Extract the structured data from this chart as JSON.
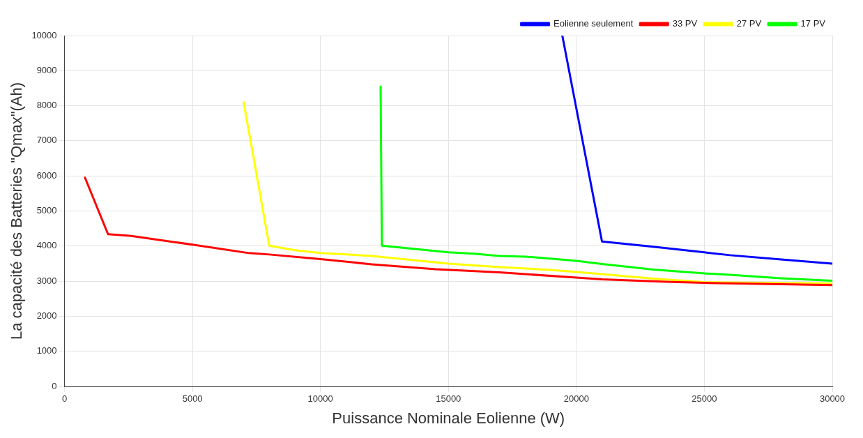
{
  "chart_data": {
    "type": "line",
    "xlabel": "Puissance Nominale Eolienne (W)",
    "ylabel": "La capacité des Batteries \"Qmax\"(Ah)",
    "xlim": [
      0,
      30000
    ],
    "xticks": [
      0,
      5000,
      10000,
      15000,
      20000,
      25000,
      30000
    ],
    "ylim": [
      0,
      10000
    ],
    "yticks": [
      0,
      1000,
      2000,
      3000,
      4000,
      5000,
      6000,
      7000,
      8000,
      9000,
      10000
    ],
    "grid": true,
    "legend": "top right",
    "line_style": "solid",
    "marker": "none",
    "series": [
      {
        "name": "Eolienne seulement",
        "color": "#0000ff",
        "x": [
          19450,
          21000,
          23000,
          25000,
          26000,
          28000,
          30000
        ],
        "values": [
          10000,
          4130,
          3980,
          3820,
          3740,
          3620,
          3500
        ]
      },
      {
        "name": "33 PV",
        "color": "#ff0000",
        "x": [
          800,
          1700,
          2600,
          5000,
          7200,
          8000,
          10000,
          12000,
          14500,
          17000,
          20000,
          21000,
          23500,
          25000,
          30000
        ],
        "values": [
          5950,
          4340,
          4290,
          4040,
          3800,
          3760,
          3630,
          3480,
          3340,
          3250,
          3100,
          3050,
          2980,
          2950,
          2890
        ]
      },
      {
        "name": "27 PV",
        "color": "#ffff00",
        "x": [
          7000,
          8000,
          9000,
          10000,
          12000,
          15000,
          17000,
          19000,
          21000,
          23000,
          25000,
          30000
        ],
        "values": [
          8100,
          4010,
          3880,
          3800,
          3720,
          3500,
          3400,
          3320,
          3200,
          3070,
          2970,
          2930
        ]
      },
      {
        "name": "17 PV",
        "color": "#00ff00",
        "x": [
          12350,
          12400,
          15000,
          16000,
          17000,
          18000,
          20000,
          21000,
          23000,
          25000,
          26000,
          28000,
          30000
        ],
        "values": [
          8550,
          4010,
          3820,
          3780,
          3720,
          3700,
          3580,
          3490,
          3330,
          3220,
          3180,
          3080,
          3010
        ]
      }
    ]
  }
}
